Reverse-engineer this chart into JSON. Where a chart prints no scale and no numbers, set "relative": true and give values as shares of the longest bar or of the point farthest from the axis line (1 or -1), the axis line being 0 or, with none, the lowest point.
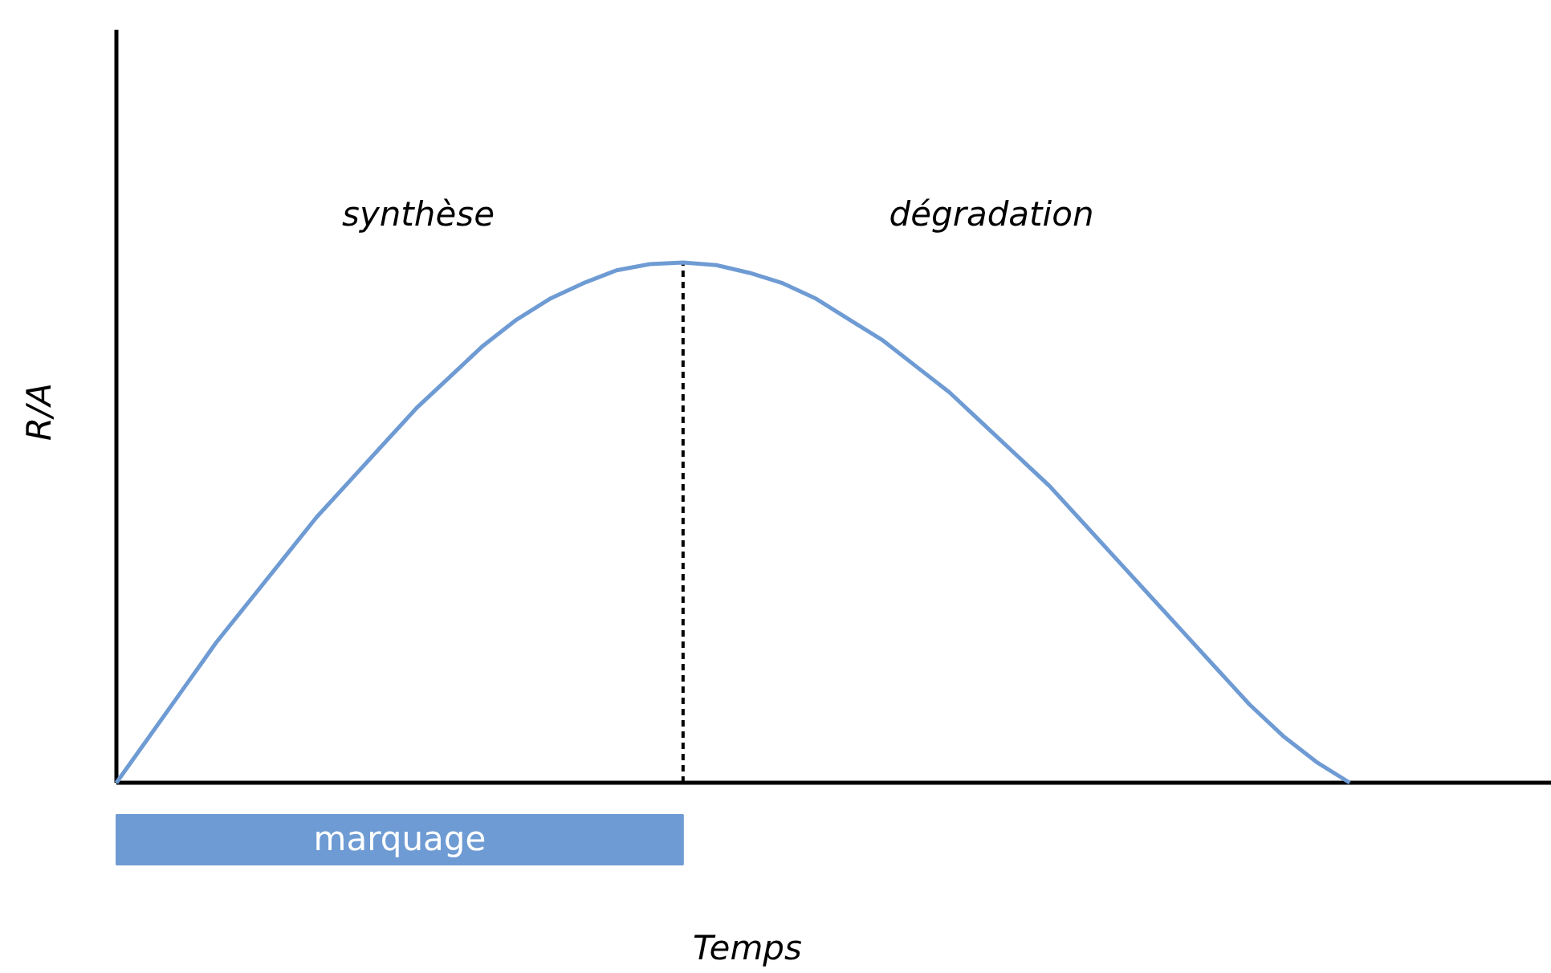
{
  "chart_data": {
    "type": "line",
    "relative": true,
    "xlabel": "Temps",
    "ylabel": "R/A",
    "color": "#6e9bd3",
    "categories": [
      null,
      null,
      null,
      null,
      null,
      null,
      null,
      null,
      null,
      null,
      null,
      null,
      null,
      null,
      null,
      null,
      null,
      null,
      null,
      null,
      null,
      null,
      null,
      null,
      null,
      null,
      null,
      null,
      null,
      null,
      null,
      null,
      null,
      null,
      null,
      null,
      null,
      null,
      null,
      null,
      null,
      null,
      null,
      null
    ],
    "values": [
      0,
      0.09,
      0.18,
      0.27,
      0.35,
      0.43,
      0.51,
      0.58,
      0.65,
      0.72,
      0.78,
      0.84,
      0.89,
      0.93,
      0.96,
      0.985,
      0.997,
      1,
      0.995,
      0.98,
      0.96,
      0.93,
      0.89,
      0.85,
      0.8,
      0.75,
      0.69,
      0.63,
      0.57,
      0.5,
      0.43,
      0.36,
      0.29,
      0.22,
      0.15,
      0.09,
      0.04,
      0,
      null,
      null,
      null,
      null,
      null,
      null
    ],
    "annotations": [
      "synthèse",
      "dégradation",
      "marquage"
    ]
  }
}
